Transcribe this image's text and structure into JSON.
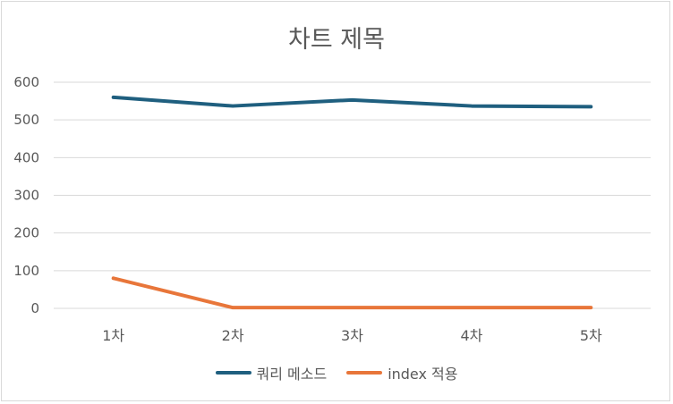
{
  "chart_data": {
    "type": "line",
    "title": "차트 제목",
    "categories": [
      "1차",
      "2차",
      "3차",
      "4차",
      "5차"
    ],
    "ylim": [
      0,
      600
    ],
    "yticks": [
      "0",
      "100",
      "200",
      "300",
      "400",
      "500",
      "600"
    ],
    "grid": true,
    "legend_position": "bottom",
    "series": [
      {
        "name": "쿼리 메소드",
        "color": "#1f5f7f",
        "values": [
          560,
          537,
          553,
          537,
          535
        ]
      },
      {
        "name": "index 적용",
        "color": "#e8763a",
        "values": [
          80,
          2,
          2,
          2,
          2
        ]
      }
    ]
  }
}
